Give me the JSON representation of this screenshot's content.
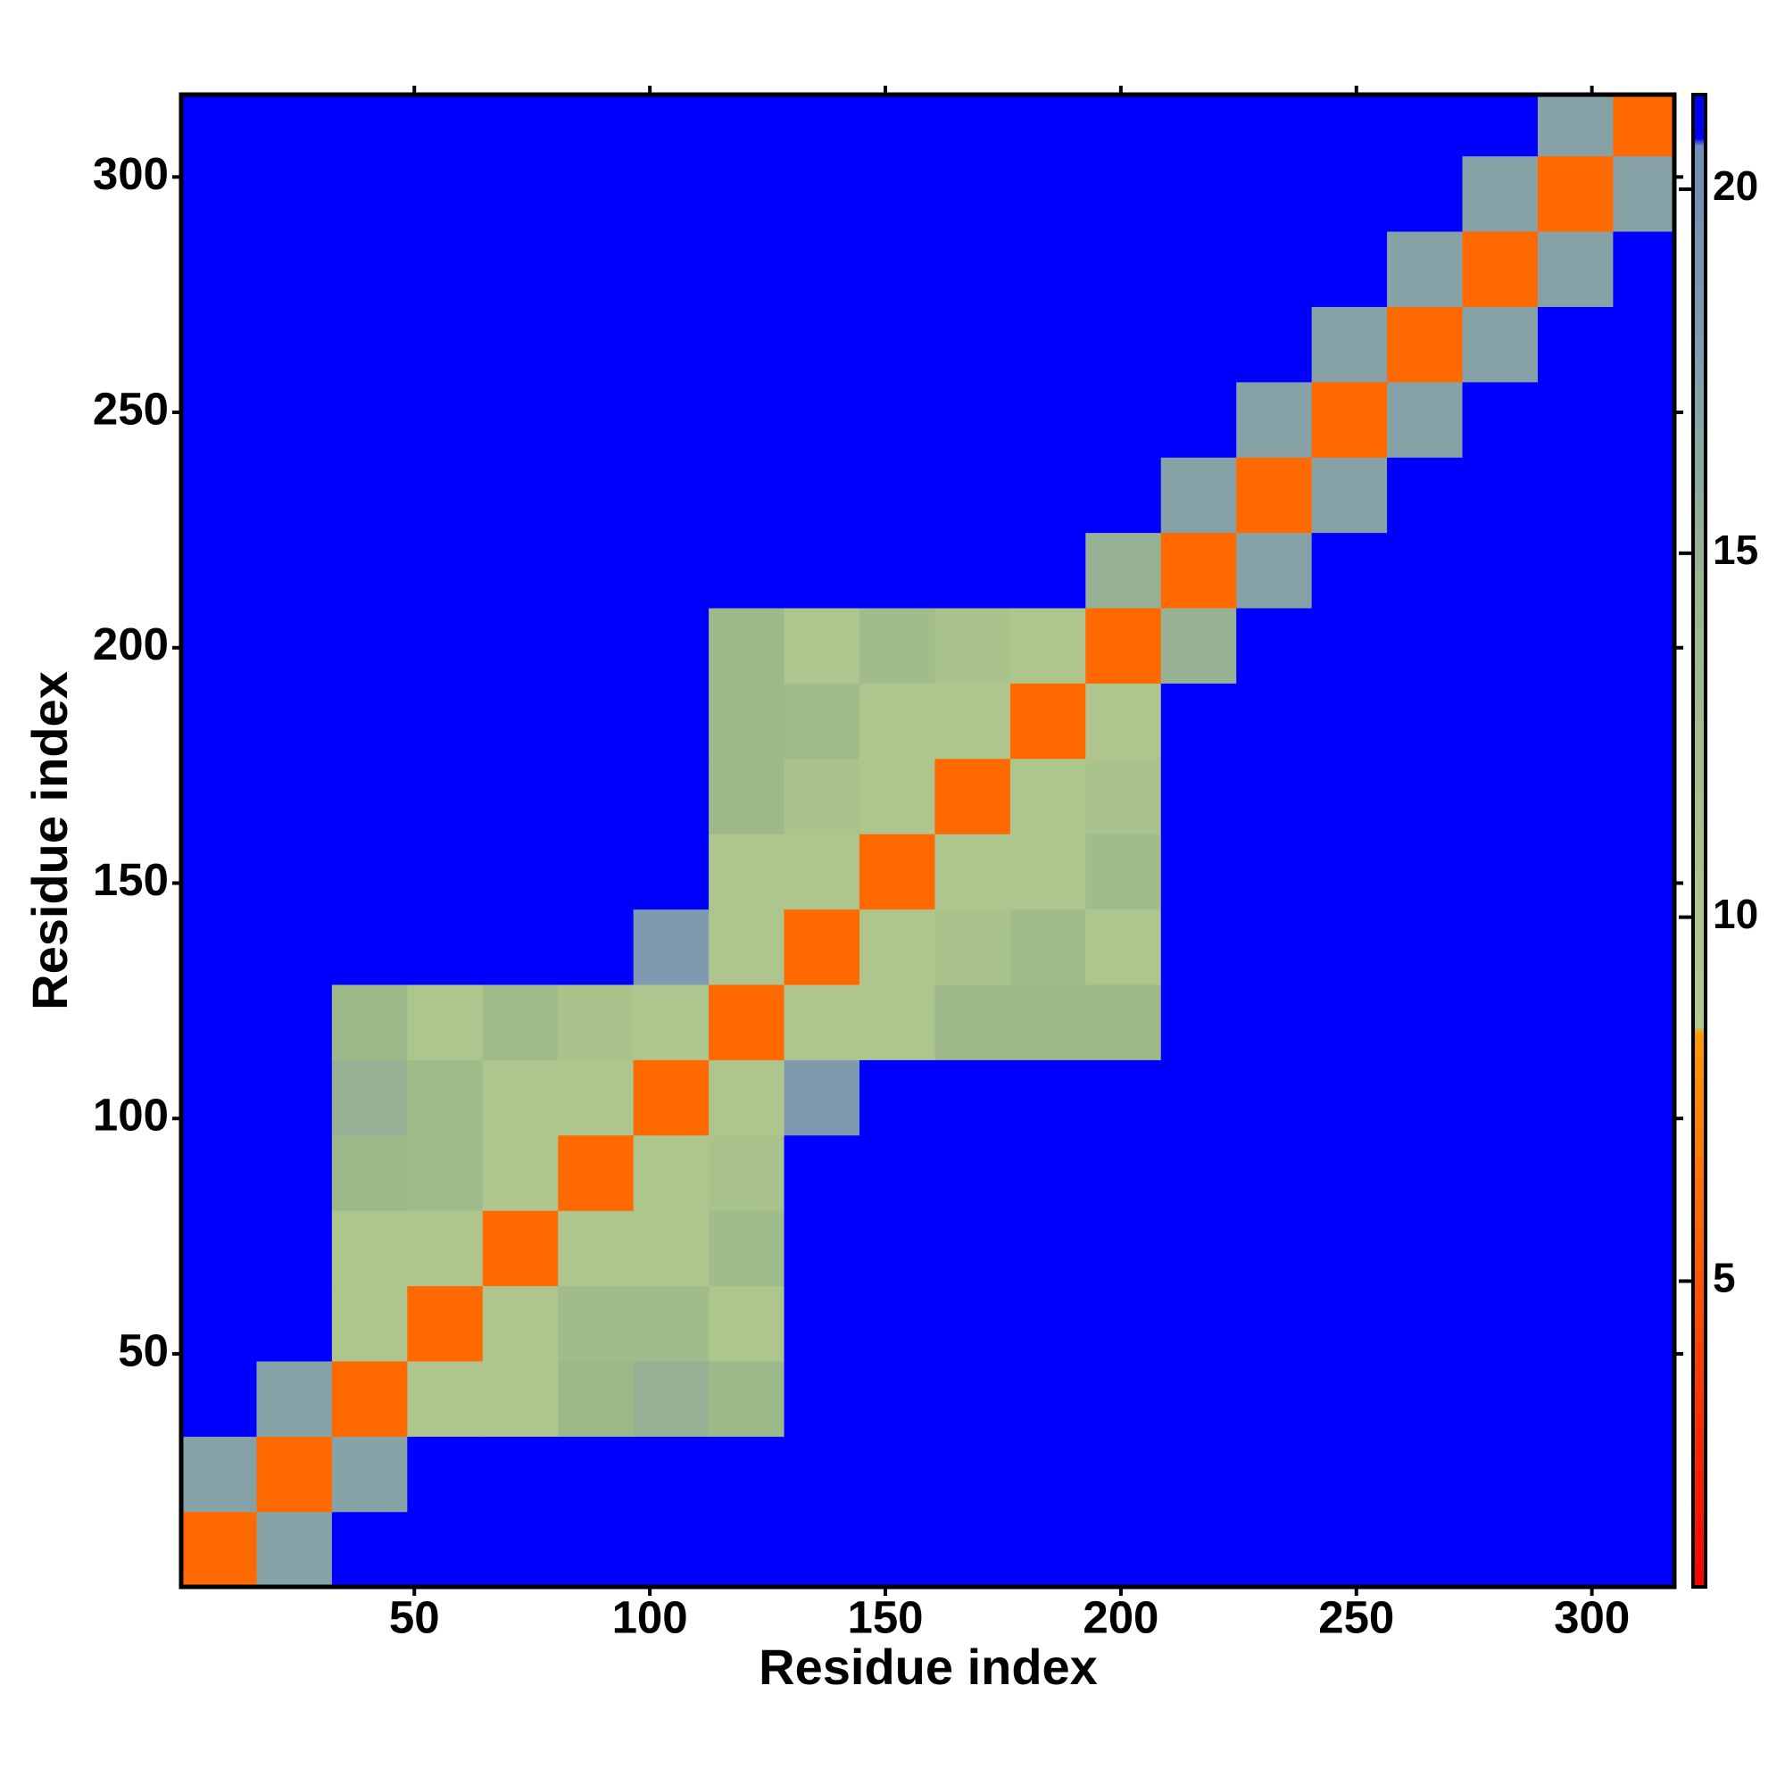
{
  "chart_data": {
    "type": "heatmap",
    "xlabel": "Residue index",
    "ylabel": "Residue index",
    "x_bins": [
      0.5,
      16.5,
      32.5,
      48.5,
      64.5,
      80.5,
      96.5,
      112.5,
      128.5,
      144.5,
      160.5,
      176.5,
      192.5,
      208.5,
      224.5,
      240.5,
      256.5,
      272.5,
      288.5,
      304.5,
      317.5
    ],
    "y_bins": [
      0.5,
      16.5,
      32.5,
      48.5,
      64.5,
      80.5,
      96.5,
      112.5,
      128.5,
      144.5,
      160.5,
      176.5,
      192.5,
      208.5,
      224.5,
      240.5,
      256.5,
      272.5,
      288.5,
      304.5,
      317.5
    ],
    "values": [
      [
        6,
        17,
        21,
        21,
        21,
        21,
        21,
        21,
        21,
        21,
        21,
        21,
        21,
        21,
        21,
        21,
        21,
        21,
        21,
        21
      ],
      [
        17,
        6,
        17,
        21,
        21,
        21,
        21,
        21,
        21,
        21,
        21,
        21,
        21,
        21,
        21,
        21,
        21,
        21,
        21,
        21
      ],
      [
        21,
        17,
        6,
        10,
        10,
        14,
        15,
        14,
        21,
        21,
        21,
        21,
        21,
        21,
        21,
        21,
        21,
        21,
        21,
        21
      ],
      [
        21,
        21,
        10,
        6,
        10,
        13,
        13,
        10,
        21,
        21,
        21,
        21,
        21,
        21,
        21,
        21,
        21,
        21,
        21,
        21
      ],
      [
        21,
        21,
        10,
        10,
        6,
        10,
        10,
        13,
        21,
        21,
        21,
        21,
        21,
        21,
        21,
        21,
        21,
        21,
        21,
        21
      ],
      [
        21,
        21,
        14,
        13,
        10,
        6,
        10,
        11,
        21,
        21,
        21,
        21,
        21,
        21,
        21,
        21,
        21,
        21,
        21,
        21
      ],
      [
        21,
        21,
        15,
        13,
        10,
        10,
        6,
        10,
        18,
        21,
        21,
        21,
        21,
        21,
        21,
        21,
        21,
        21,
        21,
        21
      ],
      [
        21,
        21,
        14,
        10,
        13,
        11,
        10,
        6,
        10,
        10,
        14,
        14,
        14,
        21,
        21,
        21,
        21,
        21,
        21,
        21
      ],
      [
        21,
        21,
        21,
        21,
        21,
        21,
        18,
        10,
        6,
        10,
        11,
        13,
        10,
        21,
        21,
        21,
        21,
        21,
        21,
        21
      ],
      [
        21,
        21,
        21,
        21,
        21,
        21,
        21,
        10,
        10,
        6,
        10,
        10,
        13,
        21,
        21,
        21,
        21,
        21,
        21,
        21
      ],
      [
        21,
        21,
        21,
        21,
        21,
        21,
        21,
        14,
        11,
        10,
        6,
        10,
        11,
        21,
        21,
        21,
        21,
        21,
        21,
        21
      ],
      [
        21,
        21,
        21,
        21,
        21,
        21,
        21,
        14,
        13,
        10,
        10,
        6,
        10,
        21,
        21,
        21,
        21,
        21,
        21,
        21
      ],
      [
        21,
        21,
        21,
        21,
        21,
        21,
        21,
        14,
        10,
        13,
        11,
        10,
        6,
        15,
        21,
        21,
        21,
        21,
        21,
        21
      ],
      [
        21,
        21,
        21,
        21,
        21,
        21,
        21,
        21,
        21,
        21,
        21,
        21,
        15,
        6,
        17,
        21,
        21,
        21,
        21,
        21
      ],
      [
        21,
        21,
        21,
        21,
        21,
        21,
        21,
        21,
        21,
        21,
        21,
        21,
        21,
        17,
        6,
        17,
        21,
        21,
        21,
        21
      ],
      [
        21,
        21,
        21,
        21,
        21,
        21,
        21,
        21,
        21,
        21,
        21,
        21,
        21,
        21,
        17,
        6,
        17,
        21,
        21,
        21
      ],
      [
        21,
        21,
        21,
        21,
        21,
        21,
        21,
        21,
        21,
        21,
        21,
        21,
        21,
        21,
        21,
        17,
        6,
        17,
        21,
        21
      ],
      [
        21,
        21,
        21,
        21,
        21,
        21,
        21,
        21,
        21,
        21,
        21,
        21,
        21,
        21,
        21,
        21,
        17,
        6,
        17,
        21
      ],
      [
        21,
        21,
        21,
        21,
        21,
        21,
        21,
        21,
        21,
        21,
        21,
        21,
        21,
        21,
        21,
        21,
        21,
        17,
        6,
        17
      ],
      [
        21,
        21,
        21,
        21,
        21,
        21,
        21,
        21,
        21,
        21,
        21,
        21,
        21,
        21,
        21,
        21,
        21,
        21,
        17,
        6
      ]
    ],
    "xlim": [
      0.5,
      317.5
    ],
    "ylim": [
      0.5,
      317.5
    ],
    "xticks": [
      50,
      100,
      150,
      200,
      250,
      300
    ],
    "yticks": [
      50,
      100,
      150,
      200,
      250,
      300
    ],
    "clim": [
      0.8,
      21.3
    ],
    "cticks": [
      5,
      10,
      15,
      20
    ],
    "colorscale": [
      {
        "value": 0.8,
        "color": "#ff0000"
      },
      {
        "value": 8.4,
        "color": "#ff9900"
      },
      {
        "value": 8.5,
        "color": "#b4c98e"
      },
      {
        "value": 14,
        "color": "#9db98a"
      },
      {
        "value": 18,
        "color": "#7f9ab0"
      },
      {
        "value": 20.6,
        "color": "#6f8db5"
      },
      {
        "value": 20.7,
        "color": "#0000ff"
      },
      {
        "value": 21.3,
        "color": "#0000ff"
      }
    ]
  }
}
